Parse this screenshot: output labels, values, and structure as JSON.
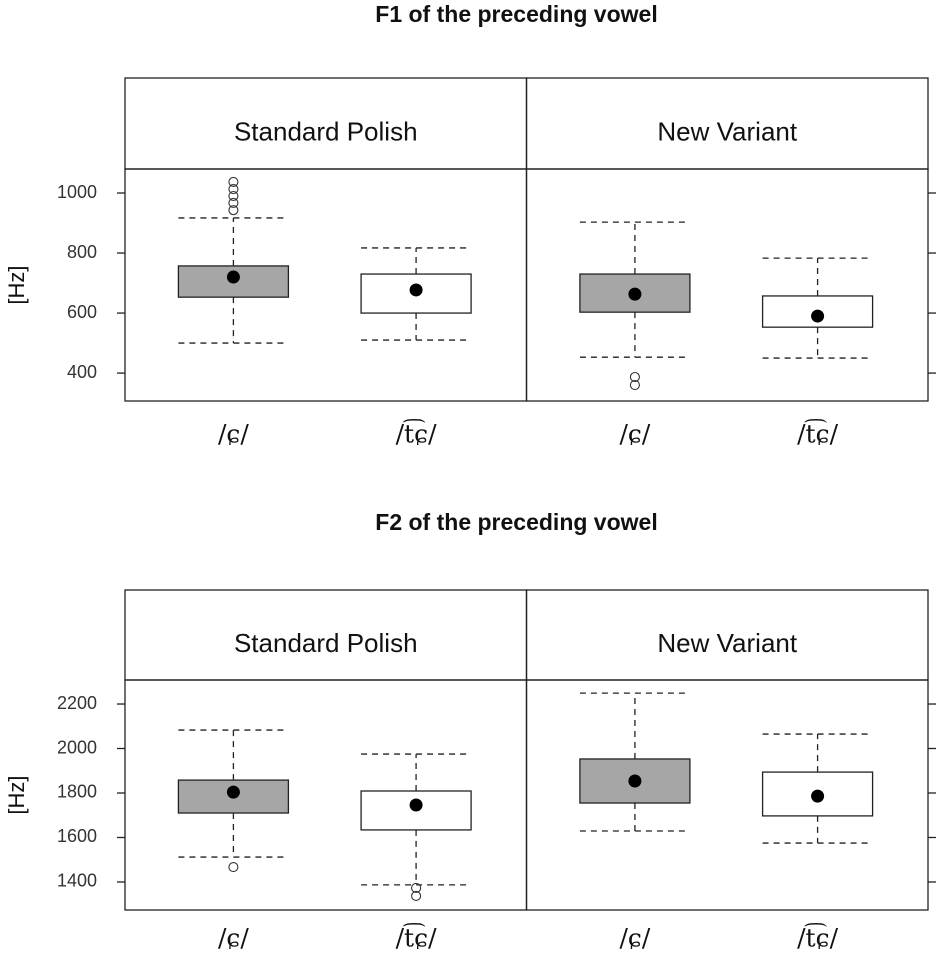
{
  "chart_data": [
    {
      "type": "box",
      "title": "F1 of the preceding vowel",
      "ylabel": "[Hz]",
      "ylim": [
        307,
        1080
      ],
      "yticks": [
        400,
        600,
        800,
        1000
      ],
      "panels": [
        {
          "title": "Standard Polish",
          "categories": [
            "/ɕ/",
            "/t͡ɕ/"
          ],
          "colors": [
            "#a6a6a6",
            "#ffffff"
          ],
          "boxes": [
            {
              "whisker_low": 500,
              "q1": 653,
              "median": 720,
              "q3": 757,
              "whisker_high": 917,
              "outliers": [
                943,
                967,
                990,
                1013,
                1037
              ]
            },
            {
              "whisker_low": 510,
              "q1": 600,
              "median": 677,
              "q3": 730,
              "whisker_high": 817,
              "outliers": []
            }
          ]
        },
        {
          "title": "New Variant",
          "categories": [
            "/ɕ/",
            "/t͡ɕ/"
          ],
          "colors": [
            "#a6a6a6",
            "#ffffff"
          ],
          "boxes": [
            {
              "whisker_low": 453,
              "q1": 603,
              "median": 663,
              "q3": 730,
              "whisker_high": 903,
              "outliers": [
                360,
                387
              ]
            },
            {
              "whisker_low": 450,
              "q1": 553,
              "median": 590,
              "q3": 657,
              "whisker_high": 783,
              "outliers": []
            }
          ]
        }
      ]
    },
    {
      "type": "box",
      "title": "F2 of the preceding vowel",
      "ylabel": "[Hz]",
      "ylim": [
        1274,
        2308
      ],
      "yticks": [
        1400,
        1600,
        1800,
        2000,
        2200
      ],
      "panels": [
        {
          "title": "Standard Polish",
          "categories": [
            "/ɕ/",
            "/t͡ɕ/"
          ],
          "colors": [
            "#a6a6a6",
            "#ffffff"
          ],
          "boxes": [
            {
              "whisker_low": 1512,
              "q1": 1710,
              "median": 1804,
              "q3": 1858,
              "whisker_high": 2083,
              "outliers": [
                1467
              ]
            },
            {
              "whisker_low": 1387,
              "q1": 1634,
              "median": 1746,
              "q3": 1809,
              "whisker_high": 1975,
              "outliers": [
                1337,
                1373
              ]
            }
          ]
        },
        {
          "title": "New Variant",
          "categories": [
            "/ɕ/",
            "/t͡ɕ/"
          ],
          "colors": [
            "#a6a6a6",
            "#ffffff"
          ],
          "boxes": [
            {
              "whisker_low": 1629,
              "q1": 1755,
              "median": 1854,
              "q3": 1953,
              "whisker_high": 2249,
              "outliers": []
            },
            {
              "whisker_low": 1575,
              "q1": 1697,
              "median": 1786,
              "q3": 1894,
              "whisker_high": 2065,
              "outliers": []
            }
          ]
        }
      ]
    }
  ]
}
